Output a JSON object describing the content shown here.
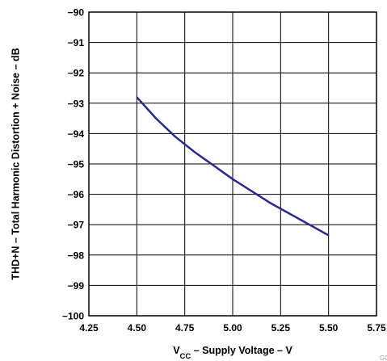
{
  "chart_data": {
    "type": "line",
    "title": "",
    "ylabel": "THD+N – Total Harmonic Distortion + Noise – dB",
    "xlabel": {
      "prefix": "V",
      "subscript": "CC",
      "suffix": " – Supply Voltage – V"
    },
    "xlim": [
      4.25,
      5.75
    ],
    "ylim": [
      -100,
      -90
    ],
    "x_ticks": [
      "4.25",
      "4.50",
      "4.75",
      "5.00",
      "5.25",
      "5.50",
      "5.75"
    ],
    "x_tick_values": [
      4.25,
      4.5,
      4.75,
      5.0,
      5.25,
      5.5,
      5.75
    ],
    "y_ticks": [
      "−90",
      "−91",
      "−92",
      "−93",
      "−94",
      "−95",
      "−96",
      "−97",
      "−98",
      "−99",
      "−100"
    ],
    "y_tick_values": [
      -90,
      -91,
      -92,
      -93,
      -94,
      -95,
      -96,
      -97,
      -98,
      -99,
      -100
    ],
    "grid": true,
    "series": [
      {
        "color": "#2a2a8a",
        "x": [
          4.5,
          4.6,
          4.7,
          4.8,
          4.9,
          5.0,
          5.1,
          5.2,
          5.3,
          5.4,
          5.5
        ],
        "y": [
          -92.8,
          -93.5,
          -94.1,
          -94.6,
          -95.05,
          -95.5,
          -95.9,
          -96.3,
          -96.65,
          -97.0,
          -97.35
        ]
      }
    ]
  },
  "watermark": "G0"
}
